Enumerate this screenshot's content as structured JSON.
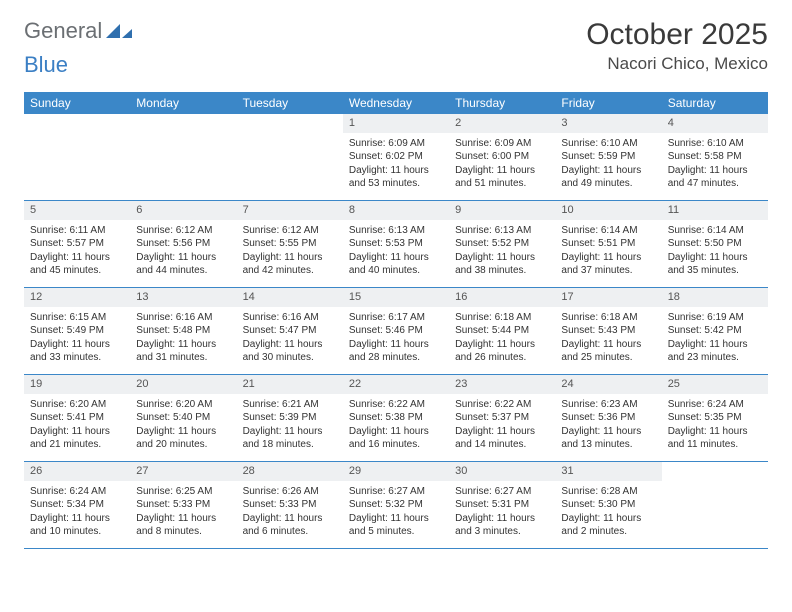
{
  "logo": {
    "text1": "General",
    "text2": "Blue"
  },
  "title": "October 2025",
  "location": "Nacori Chico, Mexico",
  "weekdays": [
    "Sunday",
    "Monday",
    "Tuesday",
    "Wednesday",
    "Thursday",
    "Friday",
    "Saturday"
  ],
  "colors": {
    "header_bg": "#3b87c8",
    "row_border": "#3b87c8",
    "daynum_bg": "#eef0f2",
    "logo_gray": "#6b6f73",
    "logo_blue": "#3b7fc4"
  },
  "weeks": [
    [
      {
        "empty": true
      },
      {
        "empty": true
      },
      {
        "empty": true
      },
      {
        "n": "1",
        "sr": "Sunrise: 6:09 AM",
        "ss": "Sunset: 6:02 PM",
        "d1": "Daylight: 11 hours",
        "d2": "and 53 minutes."
      },
      {
        "n": "2",
        "sr": "Sunrise: 6:09 AM",
        "ss": "Sunset: 6:00 PM",
        "d1": "Daylight: 11 hours",
        "d2": "and 51 minutes."
      },
      {
        "n": "3",
        "sr": "Sunrise: 6:10 AM",
        "ss": "Sunset: 5:59 PM",
        "d1": "Daylight: 11 hours",
        "d2": "and 49 minutes."
      },
      {
        "n": "4",
        "sr": "Sunrise: 6:10 AM",
        "ss": "Sunset: 5:58 PM",
        "d1": "Daylight: 11 hours",
        "d2": "and 47 minutes."
      }
    ],
    [
      {
        "n": "5",
        "sr": "Sunrise: 6:11 AM",
        "ss": "Sunset: 5:57 PM",
        "d1": "Daylight: 11 hours",
        "d2": "and 45 minutes."
      },
      {
        "n": "6",
        "sr": "Sunrise: 6:12 AM",
        "ss": "Sunset: 5:56 PM",
        "d1": "Daylight: 11 hours",
        "d2": "and 44 minutes."
      },
      {
        "n": "7",
        "sr": "Sunrise: 6:12 AM",
        "ss": "Sunset: 5:55 PM",
        "d1": "Daylight: 11 hours",
        "d2": "and 42 minutes."
      },
      {
        "n": "8",
        "sr": "Sunrise: 6:13 AM",
        "ss": "Sunset: 5:53 PM",
        "d1": "Daylight: 11 hours",
        "d2": "and 40 minutes."
      },
      {
        "n": "9",
        "sr": "Sunrise: 6:13 AM",
        "ss": "Sunset: 5:52 PM",
        "d1": "Daylight: 11 hours",
        "d2": "and 38 minutes."
      },
      {
        "n": "10",
        "sr": "Sunrise: 6:14 AM",
        "ss": "Sunset: 5:51 PM",
        "d1": "Daylight: 11 hours",
        "d2": "and 37 minutes."
      },
      {
        "n": "11",
        "sr": "Sunrise: 6:14 AM",
        "ss": "Sunset: 5:50 PM",
        "d1": "Daylight: 11 hours",
        "d2": "and 35 minutes."
      }
    ],
    [
      {
        "n": "12",
        "sr": "Sunrise: 6:15 AM",
        "ss": "Sunset: 5:49 PM",
        "d1": "Daylight: 11 hours",
        "d2": "and 33 minutes."
      },
      {
        "n": "13",
        "sr": "Sunrise: 6:16 AM",
        "ss": "Sunset: 5:48 PM",
        "d1": "Daylight: 11 hours",
        "d2": "and 31 minutes."
      },
      {
        "n": "14",
        "sr": "Sunrise: 6:16 AM",
        "ss": "Sunset: 5:47 PM",
        "d1": "Daylight: 11 hours",
        "d2": "and 30 minutes."
      },
      {
        "n": "15",
        "sr": "Sunrise: 6:17 AM",
        "ss": "Sunset: 5:46 PM",
        "d1": "Daylight: 11 hours",
        "d2": "and 28 minutes."
      },
      {
        "n": "16",
        "sr": "Sunrise: 6:18 AM",
        "ss": "Sunset: 5:44 PM",
        "d1": "Daylight: 11 hours",
        "d2": "and 26 minutes."
      },
      {
        "n": "17",
        "sr": "Sunrise: 6:18 AM",
        "ss": "Sunset: 5:43 PM",
        "d1": "Daylight: 11 hours",
        "d2": "and 25 minutes."
      },
      {
        "n": "18",
        "sr": "Sunrise: 6:19 AM",
        "ss": "Sunset: 5:42 PM",
        "d1": "Daylight: 11 hours",
        "d2": "and 23 minutes."
      }
    ],
    [
      {
        "n": "19",
        "sr": "Sunrise: 6:20 AM",
        "ss": "Sunset: 5:41 PM",
        "d1": "Daylight: 11 hours",
        "d2": "and 21 minutes."
      },
      {
        "n": "20",
        "sr": "Sunrise: 6:20 AM",
        "ss": "Sunset: 5:40 PM",
        "d1": "Daylight: 11 hours",
        "d2": "and 20 minutes."
      },
      {
        "n": "21",
        "sr": "Sunrise: 6:21 AM",
        "ss": "Sunset: 5:39 PM",
        "d1": "Daylight: 11 hours",
        "d2": "and 18 minutes."
      },
      {
        "n": "22",
        "sr": "Sunrise: 6:22 AM",
        "ss": "Sunset: 5:38 PM",
        "d1": "Daylight: 11 hours",
        "d2": "and 16 minutes."
      },
      {
        "n": "23",
        "sr": "Sunrise: 6:22 AM",
        "ss": "Sunset: 5:37 PM",
        "d1": "Daylight: 11 hours",
        "d2": "and 14 minutes."
      },
      {
        "n": "24",
        "sr": "Sunrise: 6:23 AM",
        "ss": "Sunset: 5:36 PM",
        "d1": "Daylight: 11 hours",
        "d2": "and 13 minutes."
      },
      {
        "n": "25",
        "sr": "Sunrise: 6:24 AM",
        "ss": "Sunset: 5:35 PM",
        "d1": "Daylight: 11 hours",
        "d2": "and 11 minutes."
      }
    ],
    [
      {
        "n": "26",
        "sr": "Sunrise: 6:24 AM",
        "ss": "Sunset: 5:34 PM",
        "d1": "Daylight: 11 hours",
        "d2": "and 10 minutes."
      },
      {
        "n": "27",
        "sr": "Sunrise: 6:25 AM",
        "ss": "Sunset: 5:33 PM",
        "d1": "Daylight: 11 hours",
        "d2": "and 8 minutes."
      },
      {
        "n": "28",
        "sr": "Sunrise: 6:26 AM",
        "ss": "Sunset: 5:33 PM",
        "d1": "Daylight: 11 hours",
        "d2": "and 6 minutes."
      },
      {
        "n": "29",
        "sr": "Sunrise: 6:27 AM",
        "ss": "Sunset: 5:32 PM",
        "d1": "Daylight: 11 hours",
        "d2": "and 5 minutes."
      },
      {
        "n": "30",
        "sr": "Sunrise: 6:27 AM",
        "ss": "Sunset: 5:31 PM",
        "d1": "Daylight: 11 hours",
        "d2": "and 3 minutes."
      },
      {
        "n": "31",
        "sr": "Sunrise: 6:28 AM",
        "ss": "Sunset: 5:30 PM",
        "d1": "Daylight: 11 hours",
        "d2": "and 2 minutes."
      },
      {
        "empty": true
      }
    ]
  ]
}
